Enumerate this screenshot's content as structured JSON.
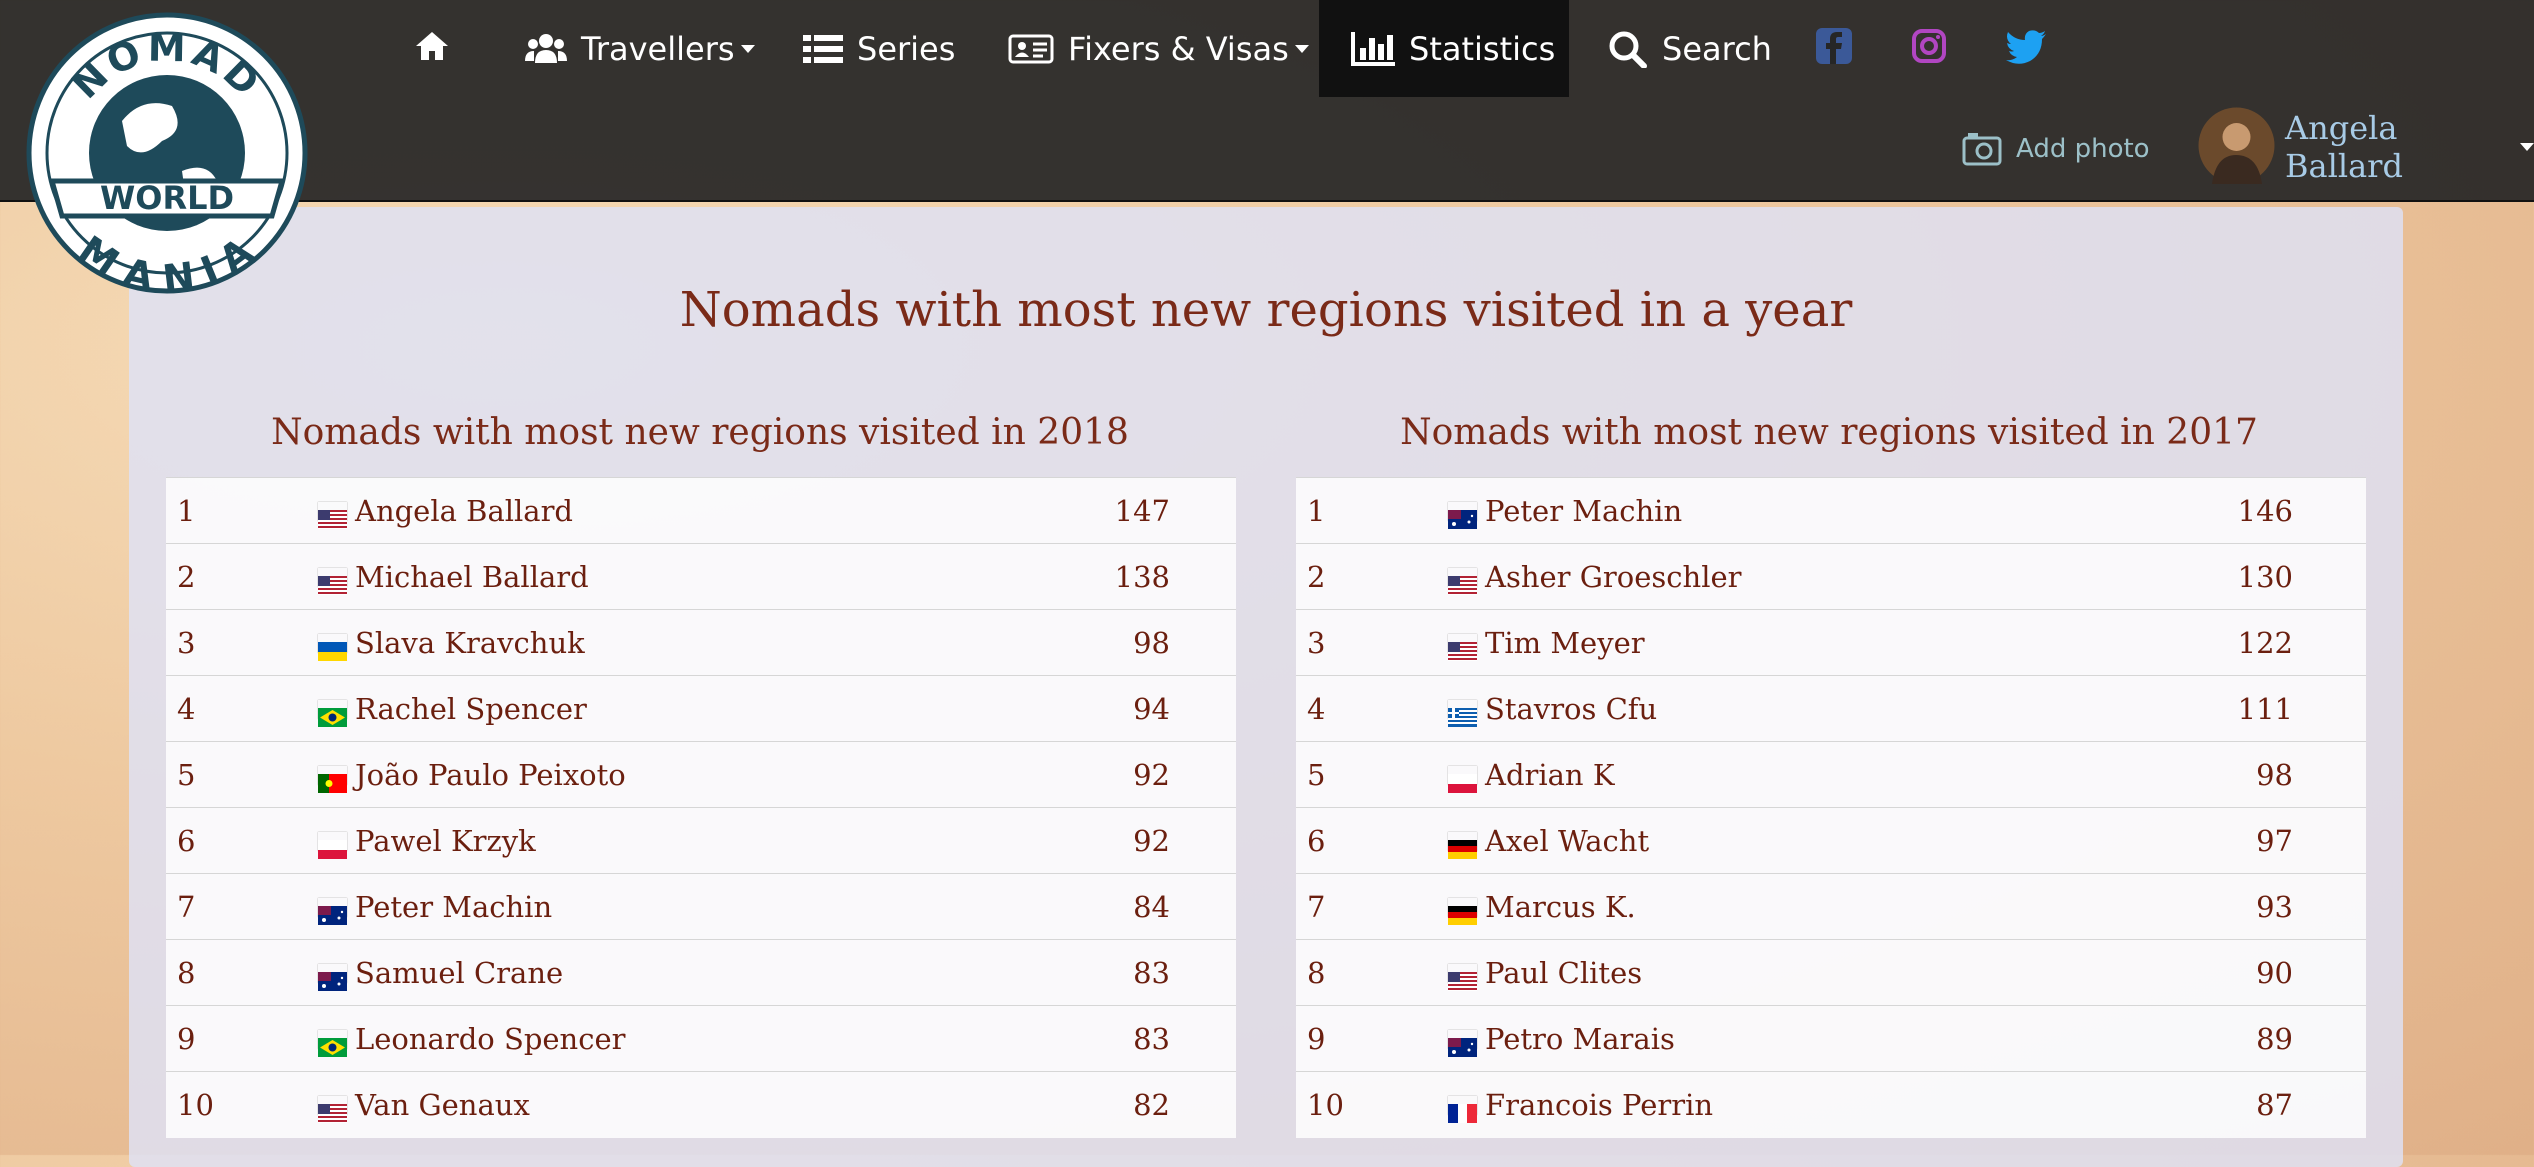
{
  "logo": {
    "top": "NOMAD",
    "middle": "WORLD",
    "bottom": "MANIA"
  },
  "nav": {
    "items": [
      "Travellers",
      "Series",
      "Fixers & Visas",
      "Statistics",
      "Search"
    ],
    "add_photo": "Add photo",
    "user": "Angela Ballard"
  },
  "title": "Nomads with most new regions visited in a year",
  "tables": [
    {
      "title": "Nomads with most new regions visited in 2018",
      "rows": [
        [
          1,
          "Angela Ballard",
          147
        ],
        [
          2,
          "Michael Ballard",
          138
        ],
        [
          3,
          "Slava Kravchuk",
          98
        ],
        [
          4,
          "Rachel Spencer",
          94
        ],
        [
          5,
          "João Paulo Peixoto",
          92
        ],
        [
          6,
          "Pawel Krzyk",
          92
        ],
        [
          7,
          "Peter Machin",
          84
        ],
        [
          8,
          "Samuel Crane",
          83
        ],
        [
          9,
          "Leonardo Spencer",
          83
        ],
        [
          10,
          "Van Genaux",
          82
        ]
      ]
    },
    {
      "title": "Nomads with most new regions visited in 2017",
      "rows": [
        [
          1,
          "Peter Machin",
          146
        ],
        [
          2,
          "Asher Groeschler",
          130
        ],
        [
          3,
          "Tim Meyer",
          122
        ],
        [
          4,
          "Stavros Cfu",
          111
        ],
        [
          5,
          "Adrian K",
          98
        ],
        [
          6,
          "Axel Wacht",
          97
        ],
        [
          7,
          "Marcus K.",
          93
        ],
        [
          8,
          "Paul Clites",
          90
        ],
        [
          9,
          "Petro Marais",
          89
        ],
        [
          10,
          "Francois Perrin",
          87
        ]
      ]
    }
  ]
}
